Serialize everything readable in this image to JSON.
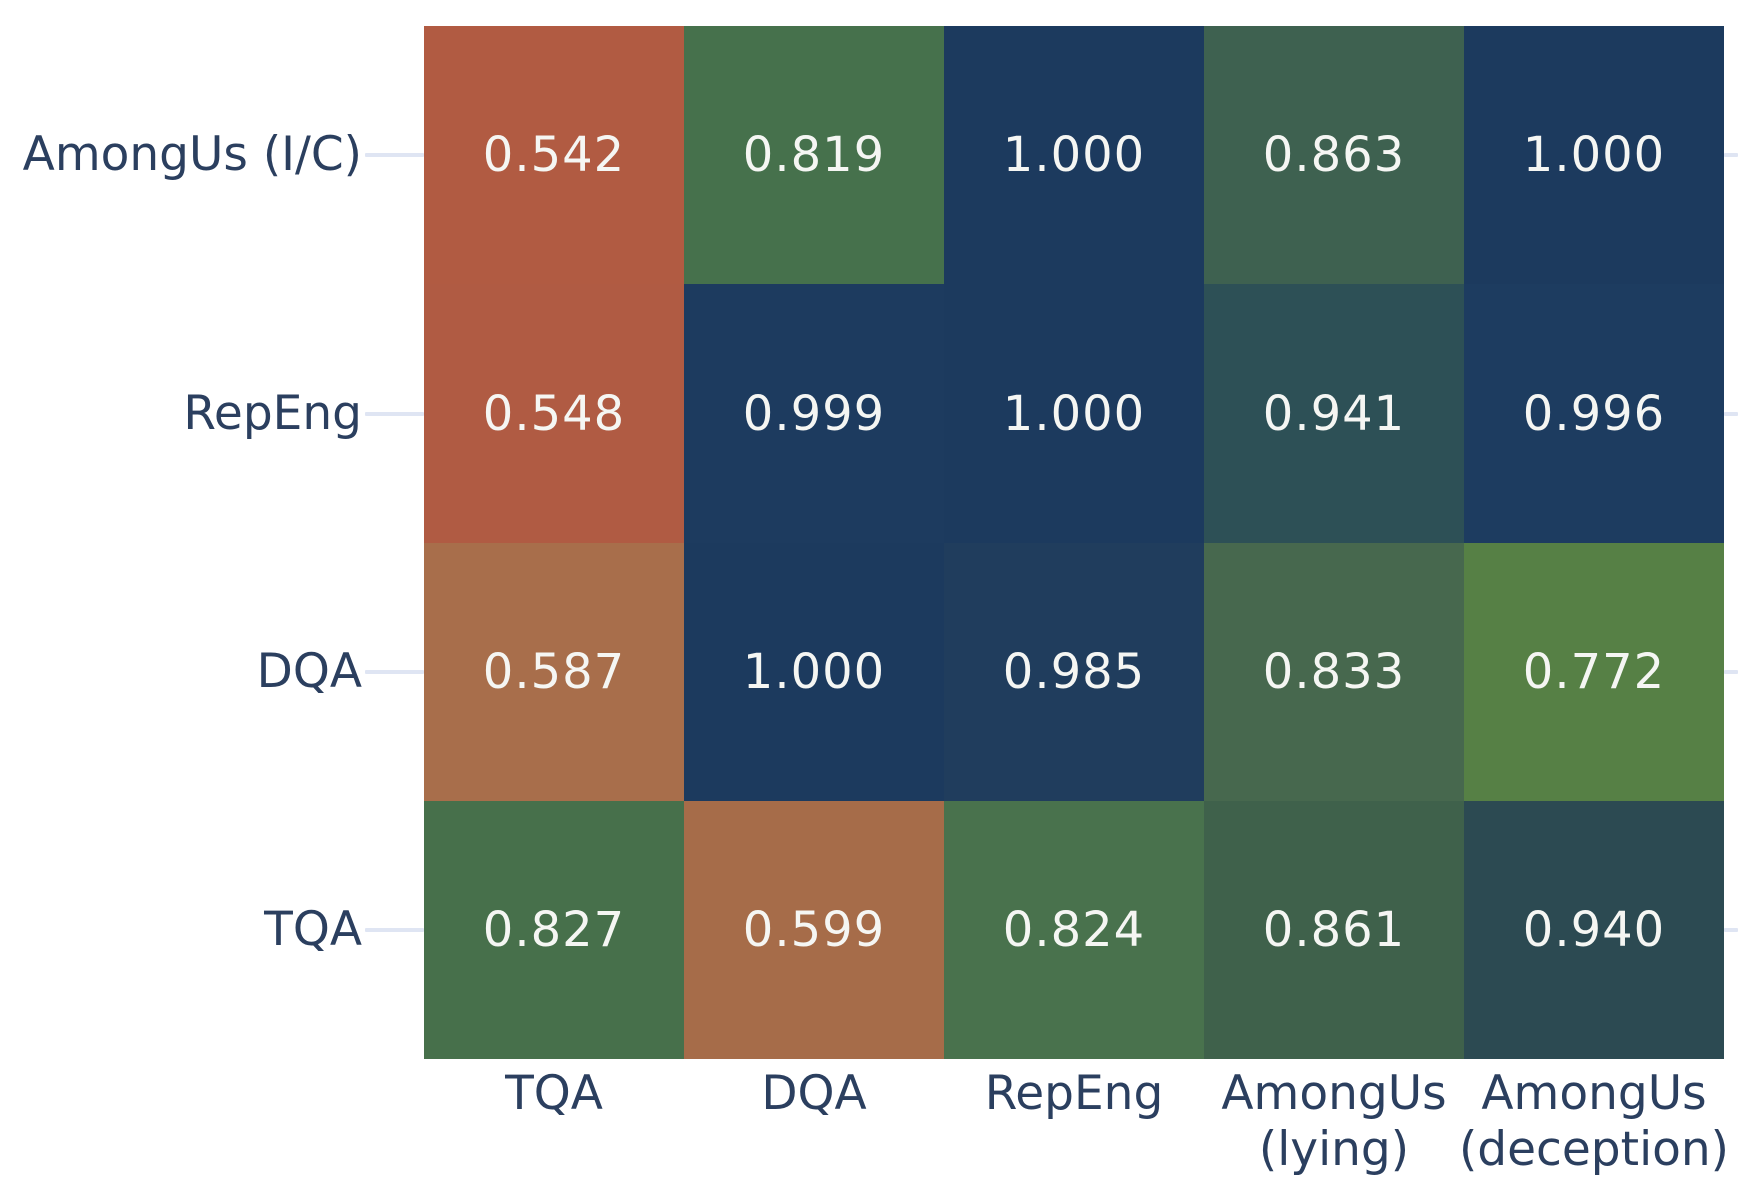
{
  "figure": {
    "background_color": "#ffffff",
    "axis_label_color": "#2b3f5f",
    "cell_value_color": "#f5f6f3",
    "tick_mark_color": "#dfe5f3"
  },
  "chart_data": {
    "type": "heatmap",
    "title": "",
    "xlabel": "",
    "ylabel": "",
    "legend": "none",
    "grid": false,
    "x_categories": [
      "TQA",
      "DQA",
      "RepEng",
      "AmongUs (lying)",
      "AmongUs (deception)"
    ],
    "x_tick_lines": [
      [
        "TQA"
      ],
      [
        "DQA"
      ],
      [
        "RepEng"
      ],
      [
        "AmongUs",
        "(lying)"
      ],
      [
        "AmongUs",
        "(deception)"
      ]
    ],
    "y_categories": [
      "AmongUs (I/C)",
      "RepEng",
      "DQA",
      "TQA"
    ],
    "values": [
      [
        0.542,
        0.819,
        1.0,
        0.863,
        1.0
      ],
      [
        0.548,
        0.999,
        1.0,
        0.941,
        0.996
      ],
      [
        0.587,
        1.0,
        0.985,
        0.833,
        0.772
      ],
      [
        0.827,
        0.599,
        0.824,
        0.861,
        0.94
      ]
    ],
    "value_decimals": 3,
    "value_range": [
      0.5,
      1.0
    ],
    "cell_colors": [
      [
        "#b15b42",
        "#46714c",
        "#1c3a5e",
        "#3e6150",
        "#1c3a5e"
      ],
      [
        "#b05b43",
        "#1d3b5f",
        "#1c3a5e",
        "#2d5056",
        "#1d3c60"
      ],
      [
        "#a86e4b",
        "#1c3a5e",
        "#203d5d",
        "#47684e",
        "#568045"
      ],
      [
        "#47704b",
        "#a66c49",
        "#49724d",
        "#3f614b",
        "#2c4a52"
      ]
    ]
  }
}
